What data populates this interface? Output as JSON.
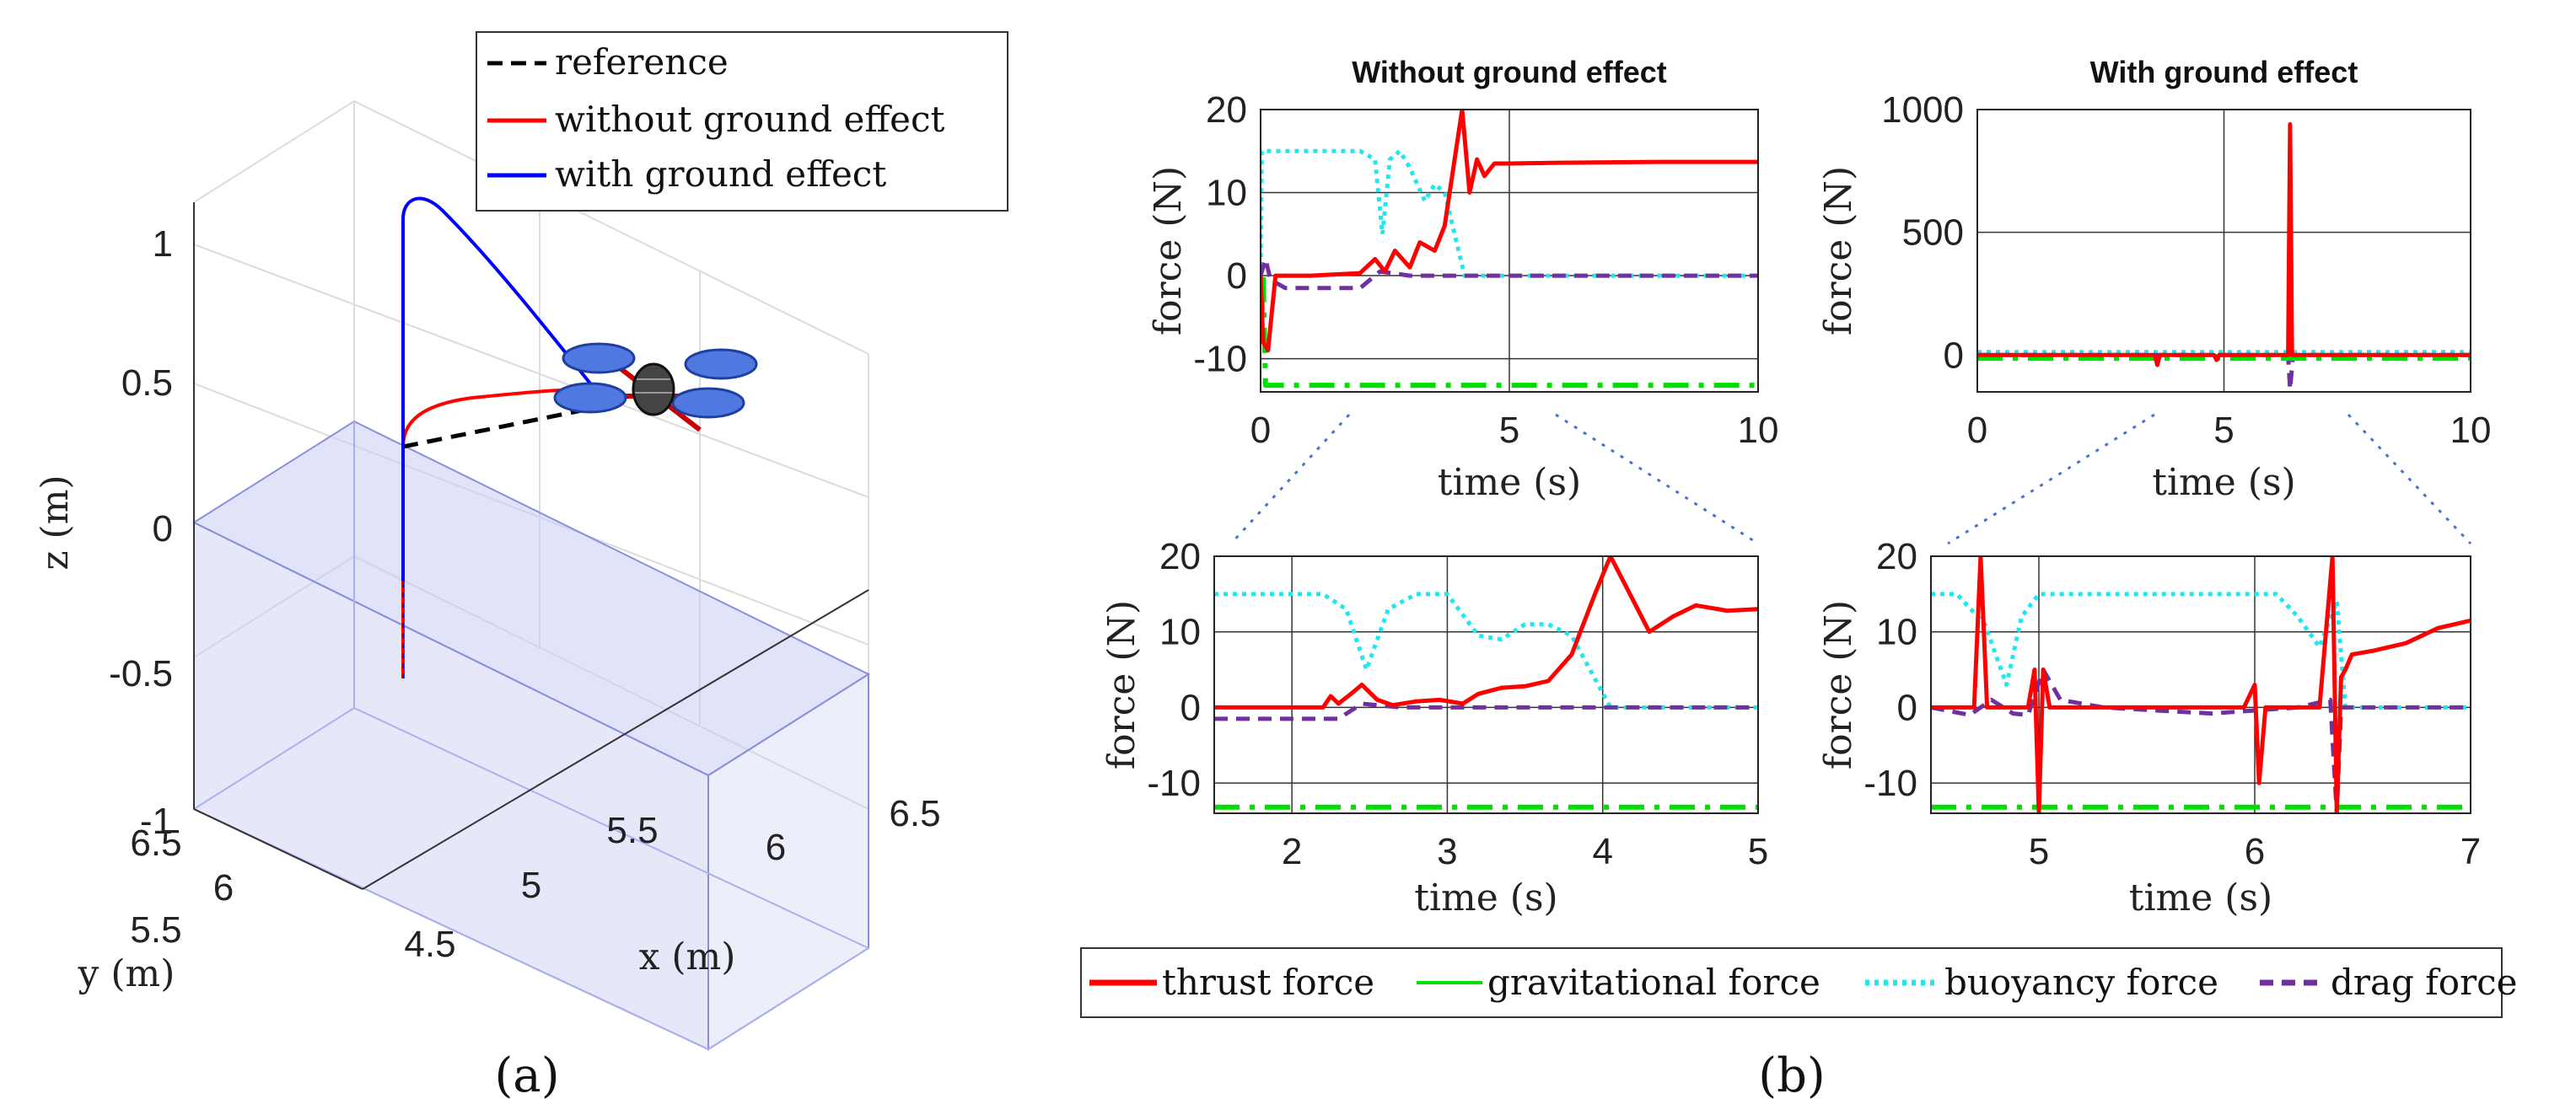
{
  "panels": {
    "a": "(a)",
    "b": "(b)"
  },
  "chart_data": [
    {
      "id": "traj3d",
      "type": "line",
      "title": "",
      "xlabel": "x (m)",
      "ylabel": "y (m)",
      "zlabel": "z (m)",
      "xlim": [
        4.5,
        6.5
      ],
      "ylim": [
        5.5,
        6.5
      ],
      "zlim": [
        -1,
        1
      ],
      "xticks": [
        "4.5",
        "5",
        "5.5",
        "6",
        "6.5"
      ],
      "yticks": [
        "5.5",
        "6",
        "6.5"
      ],
      "zticks": [
        "1",
        "0.5",
        "0",
        "-0.5",
        "-1"
      ],
      "legend": {
        "position": "top-right",
        "entries": [
          "reference",
          "without ground effect",
          "with ground effect"
        ]
      },
      "series": [
        {
          "name": "reference",
          "color": "#000000",
          "style": "dashed",
          "x": [
            4.6,
            5.6
          ],
          "y": [
            6.2,
            6.2
          ],
          "z": [
            0.28,
            0.4
          ]
        },
        {
          "name": "without ground effect",
          "color": "#ff0000",
          "style": "solid",
          "x": [
            4.6,
            4.6,
            4.6,
            4.65,
            4.8,
            5.1,
            5.4,
            5.6
          ],
          "y": [
            6.2,
            6.2,
            6.2,
            6.2,
            6.2,
            6.2,
            6.2,
            6.2
          ],
          "z": [
            -0.56,
            0.1,
            0.28,
            0.34,
            0.4,
            0.42,
            0.42,
            0.42
          ]
        },
        {
          "name": "with ground effect",
          "color": "#0000ff",
          "style": "solid",
          "x": [
            4.6,
            4.6,
            4.6,
            4.62,
            4.8,
            5.0,
            5.2,
            5.4,
            5.6
          ],
          "y": [
            6.2,
            6.2,
            6.2,
            6.2,
            6.2,
            6.2,
            6.2,
            6.2,
            6.2
          ],
          "z": [
            -0.2,
            0.3,
            0.9,
            1.1,
            0.95,
            0.75,
            0.55,
            0.42,
            0.42
          ]
        }
      ]
    },
    {
      "id": "no_ge_top",
      "type": "line",
      "title": "Without ground effect",
      "xlabel": "time (s)",
      "ylabel": "force (N)",
      "xlim": [
        0,
        10
      ],
      "ylim": [
        -14,
        20
      ],
      "xticks": [
        0,
        5,
        10
      ],
      "yticks": [
        20,
        10,
        0,
        -10
      ],
      "series": [
        {
          "name": "thrust force",
          "x": [
            0,
            0.05,
            0.15,
            0.3,
            0.5,
            1,
            2,
            2.3,
            2.5,
            2.7,
            3,
            3.2,
            3.5,
            3.7,
            3.9,
            4.05,
            4.2,
            4.35,
            4.5,
            4.7,
            5,
            6,
            8,
            10
          ],
          "y": [
            0,
            -8,
            -9,
            0,
            0,
            0,
            0.3,
            2,
            0.5,
            3,
            1,
            4,
            3,
            6,
            14,
            20,
            10,
            14,
            12,
            13.5,
            13.5,
            13.6,
            13.7,
            13.7
          ]
        },
        {
          "name": "gravitational force",
          "x": [
            0,
            0.02,
            0.05,
            0.1,
            10
          ],
          "y": [
            0,
            -6,
            0,
            -13.2,
            -13.2
          ]
        },
        {
          "name": "buoyancy force",
          "x": [
            0,
            0.02,
            0.05,
            2,
            2.3,
            2.45,
            2.6,
            2.8,
            3,
            3.3,
            3.5,
            3.7,
            4.1,
            10
          ],
          "y": [
            0,
            15,
            15,
            15,
            14,
            5,
            14,
            15,
            13,
            9,
            11,
            10,
            0,
            0
          ]
        },
        {
          "name": "drag force",
          "x": [
            0,
            0.1,
            0.2,
            0.5,
            1,
            2,
            2.4,
            3,
            10
          ],
          "y": [
            0,
            2,
            -0.5,
            -1.5,
            -1.5,
            -1.5,
            0.5,
            0,
            0
          ]
        }
      ]
    },
    {
      "id": "ge_top",
      "type": "line",
      "title": "With ground effect",
      "xlabel": "time (s)",
      "ylabel": "force (N)",
      "xlim": [
        0,
        10
      ],
      "ylim": [
        -150,
        1000
      ],
      "xticks": [
        0,
        5,
        10
      ],
      "yticks": [
        1000,
        500,
        0
      ],
      "series": [
        {
          "name": "thrust force",
          "x": [
            0,
            3.6,
            3.65,
            3.7,
            4,
            4.8,
            4.85,
            4.9,
            6.2,
            6.3,
            6.34,
            6.38,
            6.42,
            7,
            10
          ],
          "y": [
            0,
            0,
            -40,
            0,
            0,
            0,
            -20,
            0,
            0,
            0,
            940,
            0,
            0,
            0,
            0
          ]
        },
        {
          "name": "gravitational force",
          "x": [
            0,
            10
          ],
          "y": [
            -13,
            -13
          ]
        },
        {
          "name": "buoyancy force",
          "x": [
            0,
            10
          ],
          "y": [
            12,
            12
          ]
        },
        {
          "name": "drag force",
          "x": [
            0,
            6.3,
            6.34,
            6.4,
            10
          ],
          "y": [
            0,
            0,
            -140,
            0,
            0
          ]
        }
      ]
    },
    {
      "id": "no_ge_zoom",
      "type": "line",
      "title": "",
      "xlabel": "time (s)",
      "ylabel": "force (N)",
      "xlim": [
        1.5,
        5
      ],
      "ylim": [
        -14,
        20
      ],
      "xticks": [
        2,
        3,
        4,
        5
      ],
      "yticks": [
        20,
        10,
        0,
        -10
      ],
      "series": [
        {
          "name": "thrust force",
          "x": [
            1.5,
            2.2,
            2.25,
            2.3,
            2.38,
            2.45,
            2.55,
            2.65,
            2.8,
            2.95,
            3.1,
            3.2,
            3.35,
            3.5,
            3.65,
            3.8,
            3.95,
            4.05,
            4.15,
            4.3,
            4.45,
            4.6,
            4.8,
            5
          ],
          "y": [
            0,
            0,
            1.5,
            0.5,
            1.8,
            3,
            1,
            0.3,
            0.8,
            1,
            0.5,
            1.8,
            2.6,
            2.8,
            3.5,
            7,
            15,
            20,
            16,
            10,
            12,
            13.5,
            12.8,
            13
          ]
        },
        {
          "name": "gravitational force",
          "x": [
            1.5,
            5
          ],
          "y": [
            -13.2,
            -13.2
          ]
        },
        {
          "name": "buoyancy force",
          "x": [
            1.5,
            2.2,
            2.35,
            2.48,
            2.62,
            2.8,
            3.0,
            3.2,
            3.35,
            3.5,
            3.65,
            3.8,
            4.05,
            5
          ],
          "y": [
            15,
            15,
            13,
            5,
            13,
            15,
            15,
            9.5,
            9,
            11,
            11,
            9.5,
            0,
            0
          ]
        },
        {
          "name": "drag force",
          "x": [
            1.5,
            2.3,
            2.45,
            2.7,
            5
          ],
          "y": [
            -1.5,
            -1.5,
            0.5,
            0,
            0
          ]
        }
      ]
    },
    {
      "id": "ge_zoom",
      "type": "line",
      "title": "",
      "xlabel": "time (s)",
      "ylabel": "force (N)",
      "xlim": [
        4.5,
        7
      ],
      "ylim": [
        -14,
        20
      ],
      "xticks": [
        5,
        6,
        7
      ],
      "yticks": [
        20,
        10,
        0,
        -10
      ],
      "series": [
        {
          "name": "thrust force",
          "x": [
            4.5,
            4.7,
            4.73,
            4.76,
            4.8,
            4.95,
            4.98,
            5.0,
            5.02,
            5.05,
            5.5,
            5.95,
            6.0,
            6.02,
            6.05,
            6.3,
            6.36,
            6.38,
            6.4,
            6.42,
            6.45,
            6.55,
            6.7,
            6.85,
            7
          ],
          "y": [
            0,
            0,
            20,
            0,
            0,
            0,
            5,
            -14,
            5,
            0,
            0,
            0,
            3,
            -10,
            0,
            0,
            20,
            -14,
            4,
            5,
            7,
            7.5,
            8.5,
            10.5,
            11.5
          ]
        },
        {
          "name": "gravitational force",
          "x": [
            4.5,
            7
          ],
          "y": [
            -13.2,
            -13.2
          ]
        },
        {
          "name": "buoyancy force",
          "x": [
            4.5,
            4.62,
            4.75,
            4.85,
            4.92,
            5.0,
            6.1,
            6.2,
            6.3,
            6.38,
            6.42,
            7
          ],
          "y": [
            15,
            15,
            11,
            3,
            12,
            15,
            15,
            12,
            8,
            14,
            0,
            0
          ]
        },
        {
          "name": "drag force",
          "x": [
            4.5,
            4.68,
            4.78,
            4.88,
            4.95,
            5.02,
            5.1,
            5.3,
            5.8,
            6.2,
            6.35,
            6.38,
            6.4,
            7
          ],
          "y": [
            0,
            -1,
            1,
            -0.8,
            -1,
            5,
            1,
            0,
            -0.8,
            0,
            1,
            -14,
            0,
            0
          ]
        }
      ]
    }
  ],
  "legend_b": {
    "position": "bottom",
    "entries": [
      {
        "label": "thrust force",
        "color": "#ff0000",
        "style": "solid"
      },
      {
        "label": "gravitational force",
        "color": "#00e000",
        "style": "solid"
      },
      {
        "label": "buoyancy force",
        "color": "#22e6ee",
        "style": "dotted"
      },
      {
        "label": "drag force",
        "color": "#7030a0",
        "style": "dashed"
      }
    ]
  },
  "styles": {
    "thrust force": {
      "color": "#ff0000",
      "dash": "",
      "width": 5
    },
    "gravitational force": {
      "color": "#00e000",
      "dash": "30 12 6 12",
      "width": 6
    },
    "buoyancy force": {
      "color": "#22e6ee",
      "dash": "5 6",
      "width": 5
    },
    "drag force": {
      "color": "#7030a0",
      "dash": "16 10",
      "width": 5
    }
  }
}
